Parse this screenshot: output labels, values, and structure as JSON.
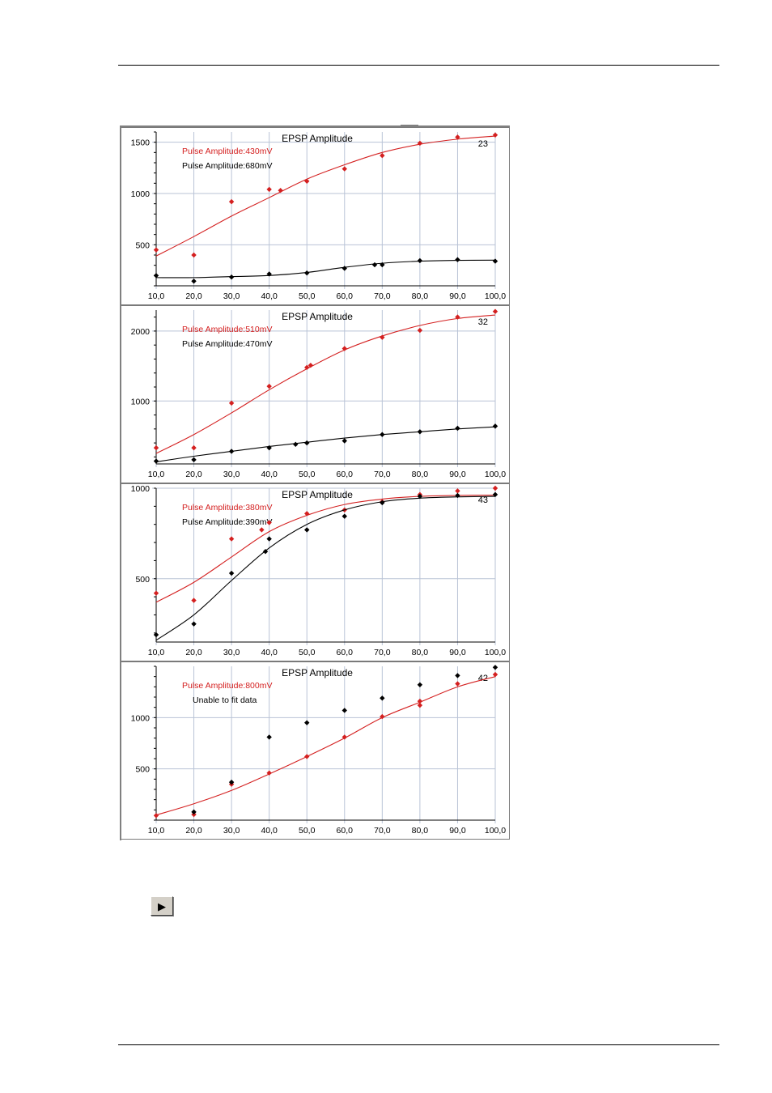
{
  "play_button": {
    "icon": "play-icon",
    "glyph": "▶"
  },
  "colors": {
    "red": "#d42020",
    "black": "#000000",
    "grid": "#b9c3d6"
  },
  "chart_data": [
    {
      "type": "scatter",
      "title": "EPSP Amplitude",
      "count_label": "23",
      "xlim": [
        10,
        100
      ],
      "ylim": [
        100,
        1600
      ],
      "y_ticks": [
        500,
        1000,
        1500
      ],
      "x_ticks": [
        10,
        20,
        30,
        40,
        50,
        60,
        70,
        80,
        90,
        100
      ],
      "x_tick_labels": [
        "10,0",
        "20,0",
        "30,0",
        "40,0",
        "50,0",
        "60,0",
        "70,0",
        "80,0",
        "90,0",
        "100,0"
      ],
      "grid": true,
      "series": [
        {
          "name": "Pulse Amplitude:430mV",
          "color": "#d42020",
          "points": [
            [
              10,
              450
            ],
            [
              20,
              400
            ],
            [
              30,
              920
            ],
            [
              40,
              1040
            ],
            [
              43,
              1030
            ],
            [
              50,
              1120
            ],
            [
              60,
              1240
            ],
            [
              70,
              1370
            ],
            [
              80,
              1490
            ],
            [
              90,
              1550
            ],
            [
              100,
              1570
            ]
          ],
          "fit": [
            [
              10,
              390
            ],
            [
              20,
              580
            ],
            [
              30,
              780
            ],
            [
              40,
              960
            ],
            [
              50,
              1140
            ],
            [
              60,
              1280
            ],
            [
              70,
              1400
            ],
            [
              80,
              1480
            ],
            [
              90,
              1530
            ],
            [
              100,
              1560
            ]
          ]
        },
        {
          "name": "Pulse Amplitude:680mV",
          "color": "#000000",
          "points": [
            [
              10,
              200
            ],
            [
              20,
              145
            ],
            [
              30,
              185
            ],
            [
              40,
              215
            ],
            [
              50,
              225
            ],
            [
              60,
              270
            ],
            [
              68,
              305
            ],
            [
              70,
              305
            ],
            [
              80,
              345
            ],
            [
              90,
              355
            ],
            [
              100,
              340
            ]
          ],
          "fit": [
            [
              10,
              180
            ],
            [
              20,
              180
            ],
            [
              30,
              190
            ],
            [
              40,
              200
            ],
            [
              50,
              230
            ],
            [
              60,
              280
            ],
            [
              70,
              320
            ],
            [
              80,
              340
            ],
            [
              90,
              348
            ],
            [
              100,
              350
            ]
          ]
        }
      ]
    },
    {
      "type": "scatter",
      "title": "EPSP Amplitude",
      "count_label": "32",
      "xlim": [
        10,
        100
      ],
      "ylim": [
        100,
        2300
      ],
      "y_ticks": [
        1000,
        2000
      ],
      "x_ticks": [
        10,
        20,
        30,
        40,
        50,
        60,
        70,
        80,
        90,
        100
      ],
      "x_tick_labels": [
        "10,0",
        "20,0",
        "30,0",
        "40,0",
        "50,0",
        "60,0",
        "70,0",
        "80,0",
        "90,0",
        "100,0"
      ],
      "grid": true,
      "series": [
        {
          "name": "Pulse Amplitude:510mV",
          "color": "#d42020",
          "points": [
            [
              10,
              330
            ],
            [
              20,
              330
            ],
            [
              30,
              970
            ],
            [
              40,
              1210
            ],
            [
              50,
              1480
            ],
            [
              51,
              1510
            ],
            [
              60,
              1750
            ],
            [
              70,
              1910
            ],
            [
              80,
              2010
            ],
            [
              90,
              2200
            ],
            [
              100,
              2280
            ]
          ],
          "fit": [
            [
              10,
              250
            ],
            [
              20,
              520
            ],
            [
              30,
              830
            ],
            [
              40,
              1160
            ],
            [
              50,
              1460
            ],
            [
              60,
              1730
            ],
            [
              70,
              1930
            ],
            [
              80,
              2080
            ],
            [
              90,
              2180
            ],
            [
              100,
              2230
            ]
          ]
        },
        {
          "name": "Pulse Amplitude:470mV",
          "color": "#000000",
          "points": [
            [
              10,
              140
            ],
            [
              20,
              160
            ],
            [
              30,
              280
            ],
            [
              40,
              330
            ],
            [
              47,
              380
            ],
            [
              50,
              400
            ],
            [
              60,
              430
            ],
            [
              70,
              520
            ],
            [
              80,
              560
            ],
            [
              90,
              610
            ],
            [
              100,
              640
            ]
          ],
          "fit": [
            [
              10,
              130
            ],
            [
              20,
              210
            ],
            [
              30,
              280
            ],
            [
              40,
              350
            ],
            [
              50,
              410
            ],
            [
              60,
              470
            ],
            [
              70,
              520
            ],
            [
              80,
              560
            ],
            [
              90,
              600
            ],
            [
              100,
              630
            ]
          ]
        }
      ]
    },
    {
      "type": "scatter",
      "title": "EPSP Amplitude",
      "count_label": "43",
      "xlim": [
        10,
        100
      ],
      "ylim": [
        150,
        1000
      ],
      "y_ticks": [
        500,
        1000
      ],
      "x_ticks": [
        10,
        20,
        30,
        40,
        50,
        60,
        70,
        80,
        90,
        100
      ],
      "x_tick_labels": [
        "10,0",
        "20,0",
        "30,0",
        "40,0",
        "50,0",
        "60,0",
        "70,0",
        "80,0",
        "90,0",
        "100,0"
      ],
      "grid": true,
      "series": [
        {
          "name": "Pulse Amplitude:380mV",
          "color": "#d42020",
          "points": [
            [
              10,
              420
            ],
            [
              20,
              380
            ],
            [
              30,
              720
            ],
            [
              38,
              770
            ],
            [
              40,
              810
            ],
            [
              50,
              860
            ],
            [
              60,
              880
            ],
            [
              70,
              925
            ],
            [
              80,
              965
            ],
            [
              90,
              985
            ],
            [
              100,
              1000
            ]
          ],
          "fit": [
            [
              10,
              370
            ],
            [
              20,
              480
            ],
            [
              30,
              620
            ],
            [
              40,
              760
            ],
            [
              50,
              850
            ],
            [
              60,
              910
            ],
            [
              70,
              940
            ],
            [
              80,
              955
            ],
            [
              90,
              960
            ],
            [
              100,
              962
            ]
          ]
        },
        {
          "name": "Pulse Amplitude:390mV",
          "color": "#000000",
          "points": [
            [
              10,
              190
            ],
            [
              20,
              250
            ],
            [
              30,
              530
            ],
            [
              39,
              650
            ],
            [
              40,
              720
            ],
            [
              50,
              770
            ],
            [
              60,
              845
            ],
            [
              70,
              920
            ],
            [
              80,
              955
            ],
            [
              90,
              960
            ],
            [
              100,
              965
            ]
          ],
          "fit": [
            [
              10,
              160
            ],
            [
              20,
              300
            ],
            [
              30,
              490
            ],
            [
              40,
              670
            ],
            [
              50,
              800
            ],
            [
              60,
              880
            ],
            [
              70,
              925
            ],
            [
              80,
              945
            ],
            [
              90,
              952
            ],
            [
              100,
              955
            ]
          ]
        }
      ]
    },
    {
      "type": "scatter",
      "title": "EPSP Amplitude",
      "count_label": "42",
      "xlim": [
        10,
        100
      ],
      "ylim": [
        0,
        1500
      ],
      "y_ticks": [
        500,
        1000
      ],
      "x_ticks": [
        10,
        20,
        30,
        40,
        50,
        60,
        70,
        80,
        90,
        100
      ],
      "x_tick_labels": [
        "10,0",
        "20,0",
        "30,0",
        "40,0",
        "50,0",
        "60,0",
        "70,0",
        "80,0",
        "90,0",
        "100,0"
      ],
      "grid": true,
      "series": [
        {
          "name": "Pulse Amplitude:800mV",
          "color": "#d42020",
          "points": [
            [
              10,
              45
            ],
            [
              20,
              55
            ],
            [
              30,
              350
            ],
            [
              40,
              460
            ],
            [
              50,
              620
            ],
            [
              60,
              810
            ],
            [
              70,
              1010
            ],
            [
              80,
              1120
            ],
            [
              80,
              1160
            ],
            [
              90,
              1330
            ],
            [
              100,
              1420
            ]
          ],
          "fit": [
            [
              10,
              50
            ],
            [
              20,
              160
            ],
            [
              30,
              290
            ],
            [
              40,
              450
            ],
            [
              50,
              620
            ],
            [
              60,
              800
            ],
            [
              70,
              1000
            ],
            [
              80,
              1150
            ],
            [
              90,
              1300
            ],
            [
              100,
              1400
            ]
          ]
        },
        {
          "name": "Unable to fit data",
          "color": "#000000",
          "points": [
            [
              20,
              80
            ],
            [
              30,
              370
            ],
            [
              40,
              810
            ],
            [
              50,
              950
            ],
            [
              60,
              1070
            ],
            [
              70,
              1190
            ],
            [
              80,
              1320
            ],
            [
              90,
              1410
            ],
            [
              100,
              1490
            ]
          ],
          "fit": []
        }
      ]
    }
  ]
}
